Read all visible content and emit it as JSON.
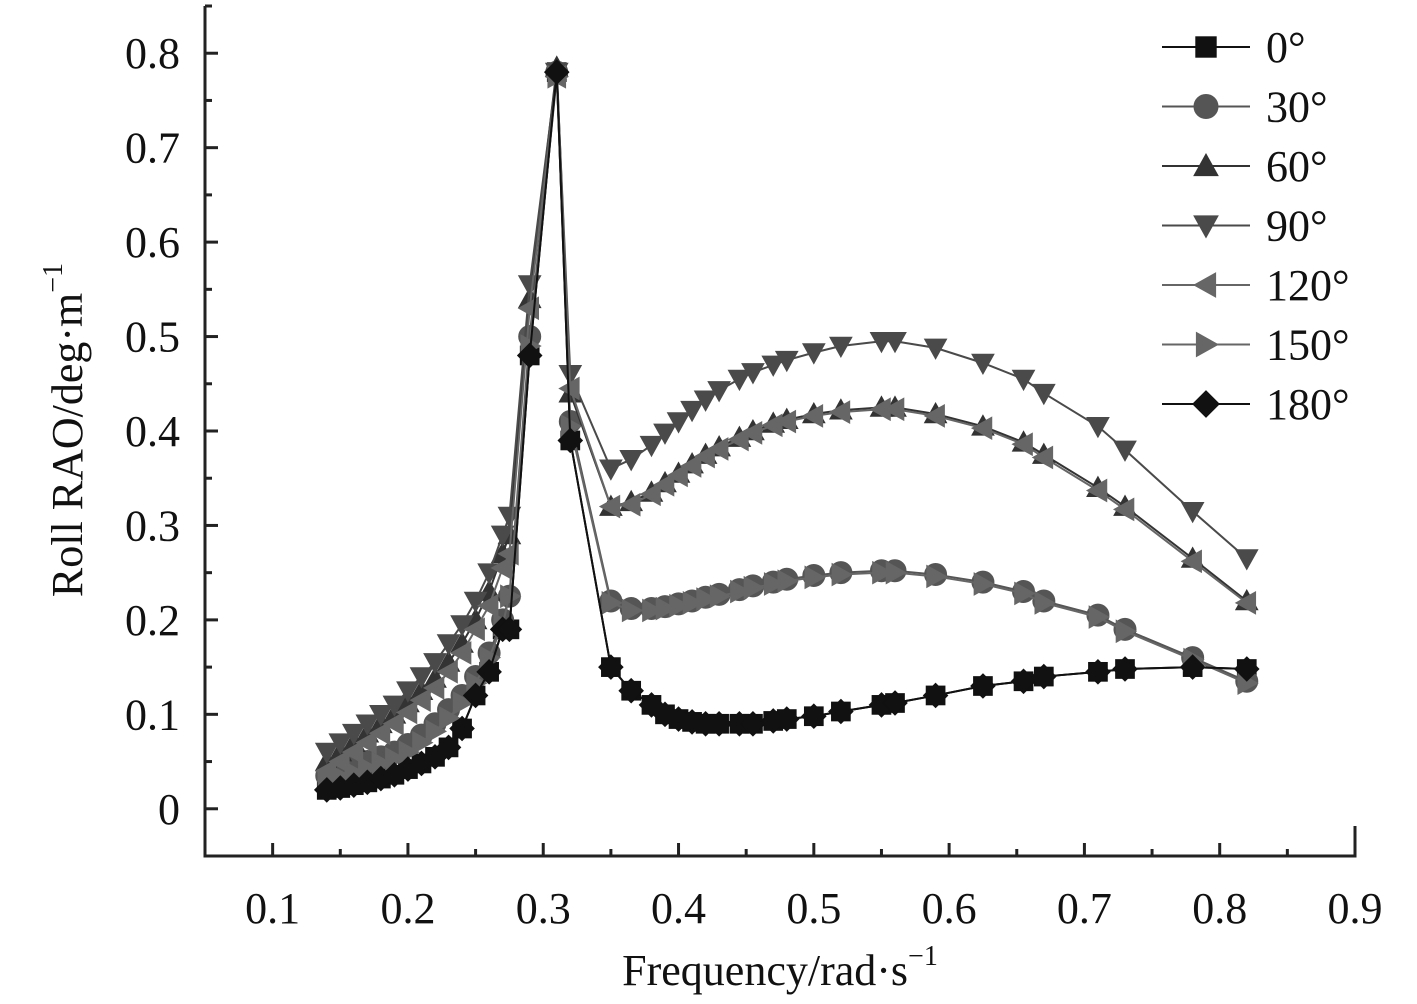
{
  "chart_data": {
    "type": "line",
    "xlabel": "Frequency/rad·s",
    "xlabel_sup": "−1",
    "ylabel": "Roll RAO/deg·m",
    "ylabel_sup": "−1",
    "xlim": [
      0.05,
      0.9
    ],
    "ylim": [
      -0.05,
      0.85
    ],
    "xticks": [
      0.1,
      0.2,
      0.3,
      0.4,
      0.5,
      0.6,
      0.7,
      0.8,
      0.9
    ],
    "xtick_labels": [
      "0.1",
      "0.2",
      "0.3",
      "0.4",
      "0.5",
      "0.6",
      "0.7",
      "0.8",
      "0.9"
    ],
    "yticks": [
      0,
      0.1,
      0.2,
      0.3,
      0.4,
      0.5,
      0.6,
      0.7,
      0.8
    ],
    "ytick_labels": [
      "0",
      "0.1",
      "0.2",
      "0.3",
      "0.4",
      "0.5",
      "0.6",
      "0.7",
      "0.8"
    ],
    "grid": false,
    "legend_position": "top-right",
    "x": [
      0.14,
      0.15,
      0.16,
      0.17,
      0.18,
      0.19,
      0.2,
      0.21,
      0.22,
      0.23,
      0.24,
      0.25,
      0.26,
      0.27,
      0.275,
      0.29,
      0.31,
      0.32,
      0.35,
      0.365,
      0.38,
      0.39,
      0.4,
      0.41,
      0.42,
      0.43,
      0.445,
      0.455,
      0.47,
      0.48,
      0.5,
      0.52,
      0.55,
      0.56,
      0.59,
      0.625,
      0.655,
      0.67,
      0.71,
      0.73,
      0.78,
      0.82
    ],
    "series": [
      {
        "name": "0°",
        "marker": "square",
        "color": "#111111",
        "values": [
          0.02,
          0.022,
          0.025,
          0.028,
          0.032,
          0.036,
          0.042,
          0.048,
          0.055,
          0.065,
          0.085,
          0.12,
          0.145,
          0.19,
          0.19,
          0.48,
          0.78,
          0.39,
          0.15,
          0.125,
          0.11,
          0.1,
          0.095,
          0.092,
          0.09,
          0.09,
          0.09,
          0.09,
          0.093,
          0.095,
          0.098,
          0.103,
          0.11,
          0.112,
          0.12,
          0.13,
          0.135,
          0.14,
          0.145,
          0.148,
          0.15,
          0.148
        ]
      },
      {
        "name": "30°",
        "marker": "circle",
        "color": "#555555",
        "values": [
          0.035,
          0.04,
          0.045,
          0.05,
          0.055,
          0.06,
          0.068,
          0.078,
          0.09,
          0.105,
          0.12,
          0.14,
          0.165,
          0.2,
          0.225,
          0.5,
          0.78,
          0.41,
          0.22,
          0.212,
          0.212,
          0.214,
          0.217,
          0.22,
          0.224,
          0.227,
          0.232,
          0.236,
          0.24,
          0.243,
          0.247,
          0.25,
          0.252,
          0.252,
          0.248,
          0.24,
          0.23,
          0.22,
          0.205,
          0.19,
          0.16,
          0.135
        ]
      },
      {
        "name": "60°",
        "marker": "triangle-up",
        "color": "#333333",
        "values": [
          0.05,
          0.06,
          0.07,
          0.08,
          0.09,
          0.1,
          0.112,
          0.125,
          0.138,
          0.155,
          0.175,
          0.2,
          0.23,
          0.27,
          0.29,
          0.54,
          0.785,
          0.44,
          0.32,
          0.325,
          0.335,
          0.345,
          0.355,
          0.365,
          0.375,
          0.383,
          0.393,
          0.4,
          0.408,
          0.412,
          0.418,
          0.422,
          0.425,
          0.425,
          0.418,
          0.405,
          0.388,
          0.375,
          0.34,
          0.32,
          0.265,
          0.22
        ]
      },
      {
        "name": "90°",
        "marker": "triangle-down",
        "color": "#4a4a4a",
        "values": [
          0.06,
          0.07,
          0.08,
          0.09,
          0.1,
          0.11,
          0.125,
          0.14,
          0.155,
          0.175,
          0.195,
          0.22,
          0.25,
          0.29,
          0.31,
          0.555,
          0.78,
          0.46,
          0.36,
          0.37,
          0.385,
          0.398,
          0.41,
          0.422,
          0.433,
          0.443,
          0.455,
          0.462,
          0.47,
          0.475,
          0.483,
          0.49,
          0.495,
          0.495,
          0.488,
          0.472,
          0.455,
          0.44,
          0.405,
          0.38,
          0.315,
          0.265
        ]
      },
      {
        "name": "120°",
        "marker": "triangle-left",
        "color": "#666666",
        "values": [
          0.04,
          0.05,
          0.06,
          0.07,
          0.08,
          0.09,
          0.102,
          0.115,
          0.128,
          0.145,
          0.165,
          0.19,
          0.215,
          0.255,
          0.27,
          0.53,
          0.775,
          0.445,
          0.32,
          0.322,
          0.333,
          0.343,
          0.353,
          0.363,
          0.373,
          0.381,
          0.391,
          0.398,
          0.406,
          0.41,
          0.416,
          0.42,
          0.423,
          0.423,
          0.416,
          0.403,
          0.386,
          0.372,
          0.337,
          0.317,
          0.262,
          0.218
        ]
      },
      {
        "name": "150°",
        "marker": "triangle-right",
        "color": "#666666",
        "values": [
          0.03,
          0.034,
          0.038,
          0.043,
          0.048,
          0.053,
          0.06,
          0.07,
          0.082,
          0.096,
          0.112,
          0.133,
          0.16,
          0.195,
          0.225,
          0.49,
          0.775,
          0.405,
          0.218,
          0.21,
          0.21,
          0.212,
          0.215,
          0.218,
          0.222,
          0.225,
          0.23,
          0.234,
          0.238,
          0.241,
          0.245,
          0.248,
          0.25,
          0.25,
          0.246,
          0.238,
          0.228,
          0.218,
          0.203,
          0.188,
          0.158,
          0.133
        ]
      },
      {
        "name": "180°",
        "marker": "diamond",
        "color": "#111111",
        "values": [
          0.02,
          0.022,
          0.025,
          0.028,
          0.032,
          0.036,
          0.042,
          0.048,
          0.055,
          0.065,
          0.085,
          0.12,
          0.145,
          0.19,
          0.19,
          0.48,
          0.78,
          0.39,
          0.15,
          0.125,
          0.11,
          0.1,
          0.095,
          0.092,
          0.09,
          0.09,
          0.09,
          0.09,
          0.093,
          0.095,
          0.098,
          0.103,
          0.11,
          0.112,
          0.12,
          0.13,
          0.135,
          0.14,
          0.145,
          0.148,
          0.15,
          0.148
        ]
      }
    ]
  }
}
